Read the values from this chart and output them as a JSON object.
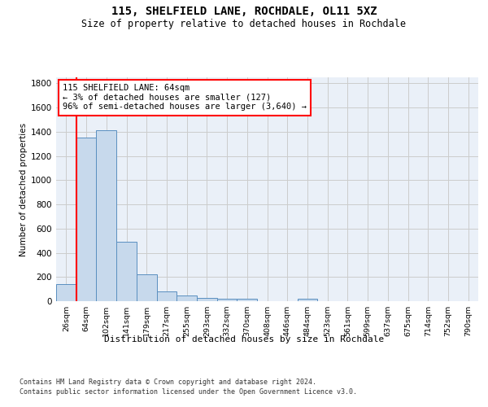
{
  "title": "115, SHELFIELD LANE, ROCHDALE, OL11 5XZ",
  "subtitle": "Size of property relative to detached houses in Rochdale",
  "xlabel": "Distribution of detached houses by size in Rochdale",
  "ylabel": "Number of detached properties",
  "bar_labels": [
    "26sqm",
    "64sqm",
    "102sqm",
    "141sqm",
    "179sqm",
    "217sqm",
    "255sqm",
    "293sqm",
    "332sqm",
    "370sqm",
    "408sqm",
    "446sqm",
    "484sqm",
    "523sqm",
    "561sqm",
    "599sqm",
    "637sqm",
    "675sqm",
    "714sqm",
    "752sqm",
    "790sqm"
  ],
  "bar_values": [
    140,
    1355,
    1410,
    490,
    225,
    80,
    45,
    28,
    20,
    20,
    0,
    0,
    20,
    0,
    0,
    0,
    0,
    0,
    0,
    0,
    0
  ],
  "bar_color": "#c7d9ec",
  "bar_edge_color": "#5a8fc0",
  "grid_color": "#cccccc",
  "bg_color": "#eaf0f8",
  "red_line_index": 1,
  "annotation_text": "115 SHELFIELD LANE: 64sqm\n← 3% of detached houses are smaller (127)\n96% of semi-detached houses are larger (3,640) →",
  "footer_line1": "Contains HM Land Registry data © Crown copyright and database right 2024.",
  "footer_line2": "Contains public sector information licensed under the Open Government Licence v3.0.",
  "ylim": [
    0,
    1850
  ],
  "yticks": [
    0,
    200,
    400,
    600,
    800,
    1000,
    1200,
    1400,
    1600,
    1800
  ]
}
